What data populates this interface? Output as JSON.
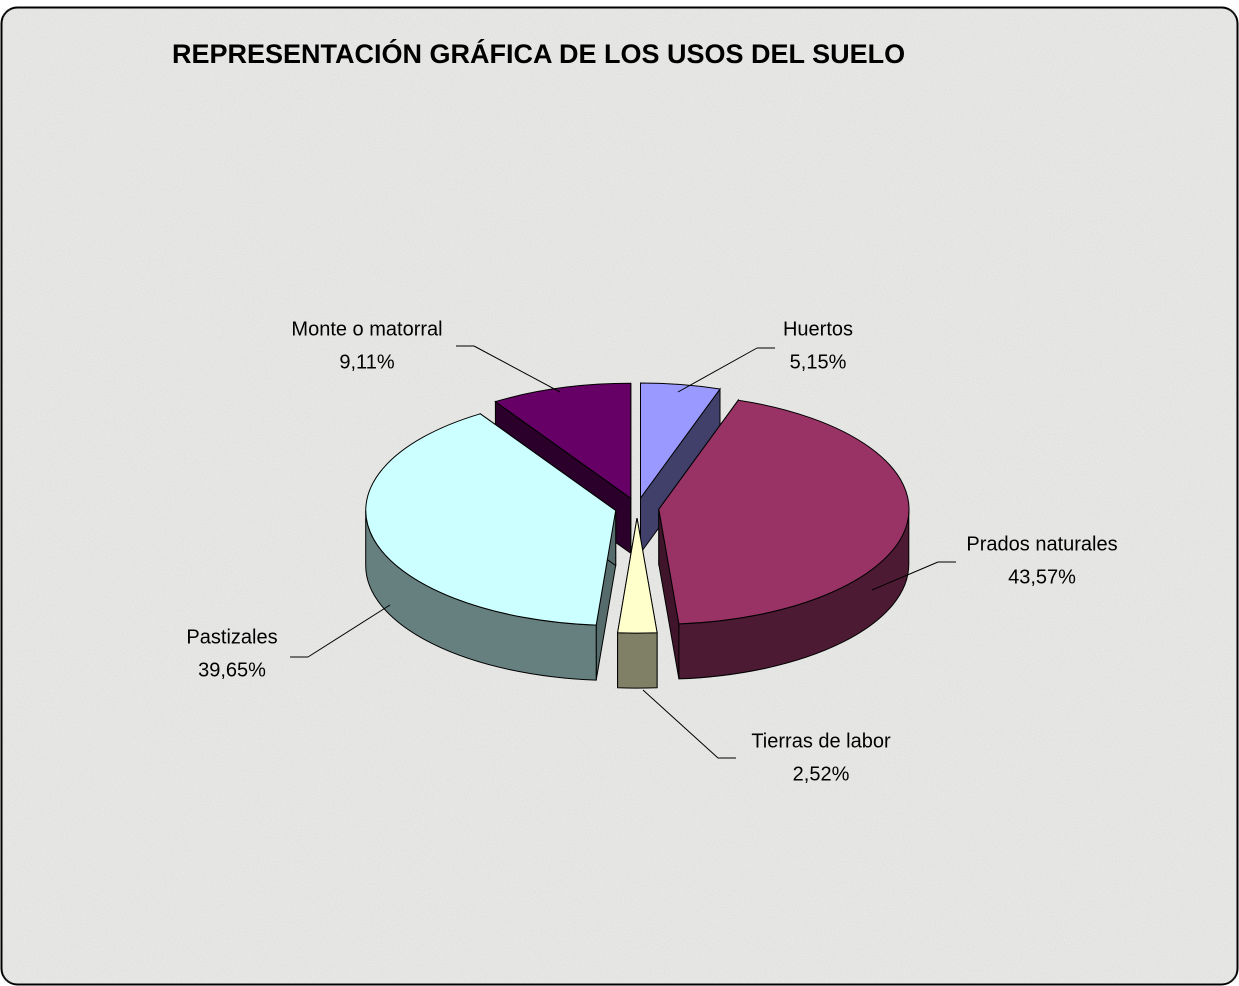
{
  "chart_data": {
    "type": "pie3d",
    "title": "REPRESENTACIÓN GRÁFICA DE LOS USOS DEL SUELO",
    "categories": [
      "Huertos",
      "Prados naturales",
      "Tierras de labor",
      "Pastizales",
      "Monte o matorral"
    ],
    "values": [
      5.15,
      43.57,
      2.52,
      39.65,
      9.11
    ],
    "value_labels": [
      "5,15%",
      "43,57%",
      "2,52%",
      "39,65%",
      "9,11%"
    ],
    "colors": [
      "#9999ff",
      "#993366",
      "#ffffcc",
      "#ccffff",
      "#660066"
    ]
  }
}
